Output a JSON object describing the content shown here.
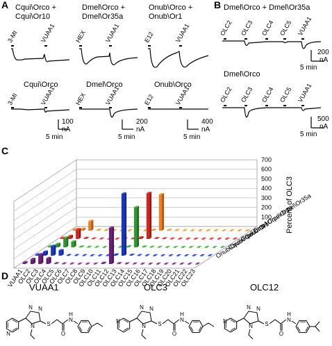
{
  "panels": {
    "A": "A",
    "B": "B",
    "C": "C",
    "D": "D"
  },
  "panel_a": {
    "col1_title": [
      "Cqui\\Orco +",
      "Cqui\\Or10"
    ],
    "col2_title": [
      "Dmel\\Orco +",
      "Dmel\\Or35a"
    ],
    "col3_title": [
      "Onub\\Orco +",
      "Onub\\Or1"
    ],
    "row2_titles": [
      "Cqui\\Orco",
      "Dmel\\Orco",
      "Onub\\Orco"
    ],
    "stim_col1": [
      "3-MI",
      "VUAA1"
    ],
    "stim_col2": [
      "HEX",
      "VUAA1"
    ],
    "stim_col3": [
      "E12",
      "VUAA1"
    ],
    "scale1": {
      "current": "100",
      "unit": "nA",
      "time": "5 min"
    },
    "scale2": {
      "current": "200",
      "unit": "nA",
      "time": "5 min"
    },
    "scale3": {
      "current": "400",
      "unit": "nA",
      "time": "5 min"
    }
  },
  "panel_b": {
    "title1": "Dmel\\Orco + Dmel\\Or35a",
    "title2": "Dmel\\Orco",
    "stimuli": [
      "OLC2",
      "OLC3",
      "OLC4",
      "OLC5",
      "VUAA1"
    ],
    "scale1": {
      "current": "200",
      "unit": "nA",
      "time": "5 min"
    },
    "scale2": {
      "current": "500",
      "unit": "nA",
      "time": "5 min"
    }
  },
  "panel_d": {
    "names": [
      "VUAA1",
      "OLC3",
      "OLC12"
    ]
  },
  "chart_data": {
    "type": "bar",
    "title": "",
    "zlabel": "Percent of OLC3",
    "zlim": [
      0,
      700
    ],
    "zticks": [
      "0",
      "100",
      "200",
      "300",
      "400",
      "500",
      "600",
      "700"
    ],
    "categories": [
      "VUAA1",
      "OLC2",
      "OLC3",
      "OLC4",
      "OLC5",
      "OLC6",
      "OLC7",
      "OLC8",
      "OLC9",
      "OLC10",
      "OLC11",
      "OLC12",
      "OLC13",
      "OLC14",
      "OLC15",
      "OLC16",
      "OLC17",
      "OLC18",
      "OLC19",
      "OLC20",
      "OLC21",
      "OLC22",
      "OLC23"
    ],
    "series": [
      {
        "name": "Dmel\\Orco+Dmel\\Or35a",
        "color": "#f57f20",
        "values": [
          12,
          18,
          100,
          5,
          3,
          2,
          1,
          1,
          1,
          1,
          6,
          380,
          5,
          3,
          2,
          1,
          1,
          1,
          1,
          1,
          1,
          1,
          1
        ]
      },
      {
        "name": "Cqui\\Orco+Cqui\\Or10",
        "color": "#d9221c",
        "values": [
          10,
          30,
          100,
          8,
          3,
          2,
          1,
          1,
          2,
          3,
          15,
          480,
          6,
          4,
          2,
          1,
          1,
          1,
          1,
          1,
          1,
          1,
          1
        ]
      },
      {
        "name": "Cqui\\Orco",
        "color": "#2e9930",
        "values": [
          8,
          35,
          100,
          60,
          5,
          3,
          2,
          1,
          1,
          2,
          8,
          420,
          5,
          3,
          2,
          1,
          1,
          1,
          1,
          1,
          1,
          1,
          1
        ]
      },
      {
        "name": "Onub\\Orco+Onub\\Or1",
        "color": "#1535c8",
        "values": [
          10,
          40,
          100,
          55,
          4,
          3,
          2,
          1,
          1,
          2,
          10,
          650,
          6,
          3,
          2,
          1,
          1,
          1,
          1,
          1,
          1,
          1,
          1
        ]
      },
      {
        "name": "",
        "color": "#6a1f7a",
        "values": [
          15,
          50,
          100,
          60,
          5,
          3,
          2,
          1,
          1,
          2,
          10,
          380,
          5,
          3,
          2,
          1,
          1,
          1,
          1,
          1,
          1,
          1,
          1
        ]
      }
    ]
  }
}
